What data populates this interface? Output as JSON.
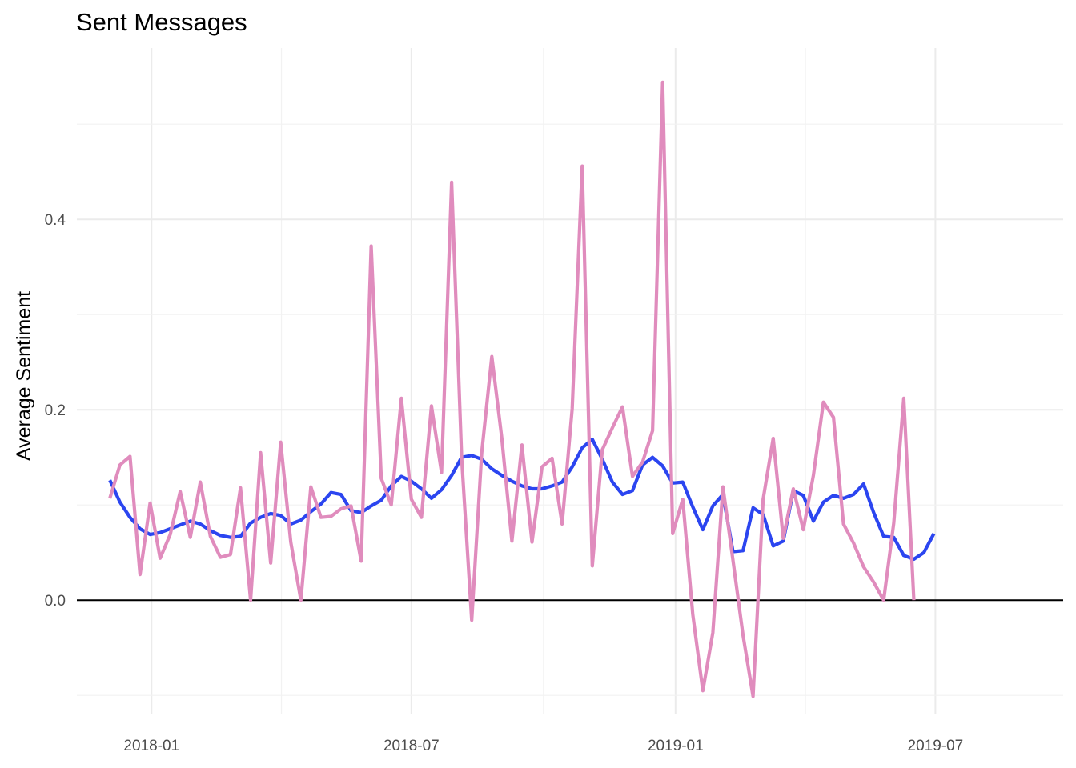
{
  "chart_data": {
    "type": "line",
    "title": "Sent Messages",
    "xlabel": "",
    "ylabel": "Average Sentiment",
    "x_ticks": [
      "2018-01",
      "2018-07",
      "2019-01",
      "2019-07"
    ],
    "y_ticks": [
      "0.0",
      "0.2",
      "0.4"
    ],
    "ylim": [
      -0.12,
      0.58
    ],
    "xlim": [
      "2017-11-10",
      "2019-09-28"
    ],
    "grid": true,
    "legend": "none",
    "reference_line": 0.0,
    "series": [
      {
        "color": "#2b45f0",
        "points": [
          [
            "2017-12-03",
            0.126
          ],
          [
            "2017-12-10",
            0.103
          ],
          [
            "2017-12-17",
            0.087
          ],
          [
            "2017-12-24",
            0.075
          ],
          [
            "2017-12-31",
            0.069
          ],
          [
            "2018-01-07",
            0.071
          ],
          [
            "2018-01-14",
            0.075
          ],
          [
            "2018-01-21",
            0.079
          ],
          [
            "2018-01-28",
            0.083
          ],
          [
            "2018-02-04",
            0.08
          ],
          [
            "2018-02-11",
            0.073
          ],
          [
            "2018-02-18",
            0.068
          ],
          [
            "2018-02-25",
            0.066
          ],
          [
            "2018-03-04",
            0.067
          ],
          [
            "2018-03-11",
            0.081
          ],
          [
            "2018-03-18",
            0.087
          ],
          [
            "2018-03-25",
            0.091
          ],
          [
            "2018-04-01",
            0.089
          ],
          [
            "2018-04-08",
            0.08
          ],
          [
            "2018-04-15",
            0.084
          ],
          [
            "2018-04-22",
            0.093
          ],
          [
            "2018-04-29",
            0.101
          ],
          [
            "2018-05-06",
            0.113
          ],
          [
            "2018-05-13",
            0.111
          ],
          [
            "2018-05-20",
            0.094
          ],
          [
            "2018-05-27",
            0.092
          ],
          [
            "2018-06-03",
            0.099
          ],
          [
            "2018-06-10",
            0.105
          ],
          [
            "2018-06-17",
            0.12
          ],
          [
            "2018-06-24",
            0.13
          ],
          [
            "2018-07-01",
            0.125
          ],
          [
            "2018-07-08",
            0.117
          ],
          [
            "2018-07-15",
            0.107
          ],
          [
            "2018-07-22",
            0.116
          ],
          [
            "2018-07-29",
            0.131
          ],
          [
            "2018-08-05",
            0.15
          ],
          [
            "2018-08-12",
            0.152
          ],
          [
            "2018-08-19",
            0.148
          ],
          [
            "2018-08-26",
            0.138
          ],
          [
            "2018-09-02",
            0.131
          ],
          [
            "2018-09-09",
            0.125
          ],
          [
            "2018-09-16",
            0.12
          ],
          [
            "2018-09-23",
            0.117
          ],
          [
            "2018-09-30",
            0.117
          ],
          [
            "2018-10-07",
            0.12
          ],
          [
            "2018-10-14",
            0.124
          ],
          [
            "2018-10-21",
            0.14
          ],
          [
            "2018-10-28",
            0.16
          ],
          [
            "2018-11-04",
            0.169
          ],
          [
            "2018-11-11",
            0.148
          ],
          [
            "2018-11-18",
            0.124
          ],
          [
            "2018-11-25",
            0.111
          ],
          [
            "2018-12-02",
            0.115
          ],
          [
            "2018-12-09",
            0.142
          ],
          [
            "2018-12-16",
            0.15
          ],
          [
            "2018-12-23",
            0.141
          ],
          [
            "2018-12-30",
            0.123
          ],
          [
            "2019-01-06",
            0.124
          ],
          [
            "2019-01-13",
            0.098
          ],
          [
            "2019-01-20",
            0.074
          ],
          [
            "2019-01-27",
            0.099
          ],
          [
            "2019-02-03",
            0.111
          ],
          [
            "2019-02-10",
            0.051
          ],
          [
            "2019-02-17",
            0.052
          ],
          [
            "2019-02-24",
            0.097
          ],
          [
            "2019-03-03",
            0.09
          ],
          [
            "2019-03-10",
            0.057
          ],
          [
            "2019-03-17",
            0.062
          ],
          [
            "2019-03-24",
            0.115
          ],
          [
            "2019-03-31",
            0.11
          ],
          [
            "2019-04-07",
            0.083
          ],
          [
            "2019-04-14",
            0.103
          ],
          [
            "2019-04-21",
            0.11
          ],
          [
            "2019-04-28",
            0.107
          ],
          [
            "2019-05-05",
            0.111
          ],
          [
            "2019-05-12",
            0.122
          ],
          [
            "2019-05-19",
            0.092
          ],
          [
            "2019-05-26",
            0.067
          ],
          [
            "2019-06-02",
            0.066
          ],
          [
            "2019-06-09",
            0.047
          ],
          [
            "2019-06-16",
            0.043
          ],
          [
            "2019-06-23",
            0.05
          ],
          [
            "2019-06-30",
            0.07
          ]
        ]
      },
      {
        "color": "#e08cbd",
        "points": [
          [
            "2017-12-03",
            0.107
          ],
          [
            "2017-12-10",
            0.142
          ],
          [
            "2017-12-17",
            0.151
          ],
          [
            "2017-12-24",
            0.027
          ],
          [
            "2017-12-31",
            0.102
          ],
          [
            "2018-01-07",
            0.044
          ],
          [
            "2018-01-14",
            0.069
          ],
          [
            "2018-01-21",
            0.114
          ],
          [
            "2018-01-28",
            0.066
          ],
          [
            "2018-02-04",
            0.124
          ],
          [
            "2018-02-11",
            0.067
          ],
          [
            "2018-02-18",
            0.045
          ],
          [
            "2018-02-25",
            0.048
          ],
          [
            "2018-03-04",
            0.118
          ],
          [
            "2018-03-11",
            0.0
          ],
          [
            "2018-03-18",
            0.155
          ],
          [
            "2018-03-25",
            0.039
          ],
          [
            "2018-04-01",
            0.166
          ],
          [
            "2018-04-08",
            0.061
          ],
          [
            "2018-04-15",
            0.0
          ],
          [
            "2018-04-22",
            0.119
          ],
          [
            "2018-04-29",
            0.087
          ],
          [
            "2018-05-06",
            0.088
          ],
          [
            "2018-05-13",
            0.096
          ],
          [
            "2018-05-20",
            0.099
          ],
          [
            "2018-05-27",
            0.041
          ],
          [
            "2018-06-03",
            0.372
          ],
          [
            "2018-06-10",
            0.128
          ],
          [
            "2018-06-17",
            0.1
          ],
          [
            "2018-06-24",
            0.212
          ],
          [
            "2018-07-01",
            0.106
          ],
          [
            "2018-07-08",
            0.087
          ],
          [
            "2018-07-15",
            0.204
          ],
          [
            "2018-07-22",
            0.134
          ],
          [
            "2018-07-29",
            0.439
          ],
          [
            "2018-08-05",
            0.15
          ],
          [
            "2018-08-12",
            -0.021
          ],
          [
            "2018-08-19",
            0.155
          ],
          [
            "2018-08-26",
            0.256
          ],
          [
            "2018-09-02",
            0.17
          ],
          [
            "2018-09-09",
            0.062
          ],
          [
            "2018-09-16",
            0.163
          ],
          [
            "2018-09-23",
            0.061
          ],
          [
            "2018-09-30",
            0.14
          ],
          [
            "2018-10-07",
            0.149
          ],
          [
            "2018-10-14",
            0.08
          ],
          [
            "2018-10-21",
            0.201
          ],
          [
            "2018-10-28",
            0.456
          ],
          [
            "2018-11-04",
            0.036
          ],
          [
            "2018-11-11",
            0.158
          ],
          [
            "2018-11-18",
            0.181
          ],
          [
            "2018-11-25",
            0.203
          ],
          [
            "2018-12-02",
            0.13
          ],
          [
            "2018-12-09",
            0.145
          ],
          [
            "2018-12-16",
            0.178
          ],
          [
            "2018-12-23",
            0.544
          ],
          [
            "2018-12-30",
            0.07
          ],
          [
            "2019-01-06",
            0.106
          ],
          [
            "2019-01-13",
            -0.015
          ],
          [
            "2019-01-20",
            -0.095
          ],
          [
            "2019-01-27",
            -0.034
          ],
          [
            "2019-02-03",
            0.119
          ],
          [
            "2019-02-10",
            0.042
          ],
          [
            "2019-02-17",
            -0.037
          ],
          [
            "2019-02-24",
            -0.101
          ],
          [
            "2019-03-03",
            0.106
          ],
          [
            "2019-03-10",
            0.17
          ],
          [
            "2019-03-17",
            0.065
          ],
          [
            "2019-03-24",
            0.117
          ],
          [
            "2019-03-31",
            0.074
          ],
          [
            "2019-04-07",
            0.131
          ],
          [
            "2019-04-14",
            0.208
          ],
          [
            "2019-04-21",
            0.192
          ],
          [
            "2019-04-28",
            0.08
          ],
          [
            "2019-05-05",
            0.06
          ],
          [
            "2019-05-12",
            0.035
          ],
          [
            "2019-05-19",
            0.019
          ],
          [
            "2019-05-26",
            0.0
          ],
          [
            "2019-06-02",
            0.081
          ],
          [
            "2019-06-09",
            0.212
          ],
          [
            "2019-06-16",
            0.0
          ]
        ]
      }
    ]
  }
}
